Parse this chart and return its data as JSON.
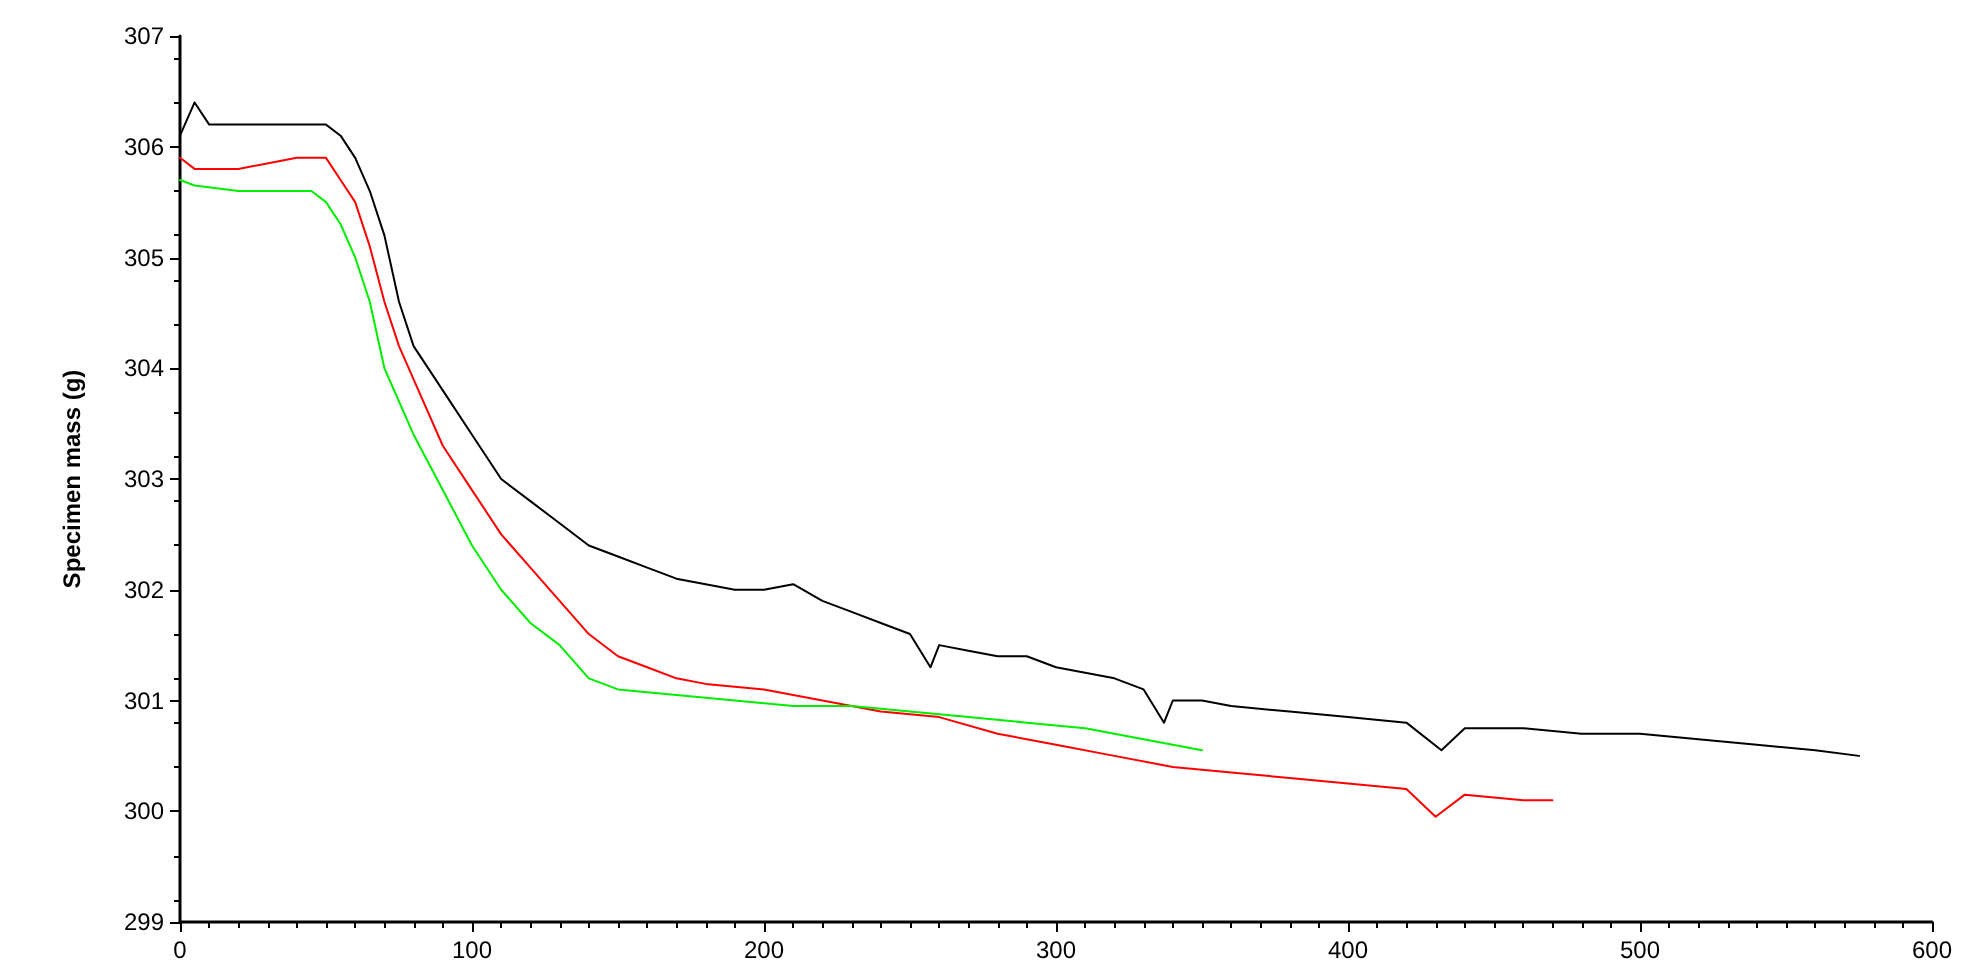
{
  "chart_data": {
    "type": "line",
    "ylabel": "Specimen mass (g)",
    "xlim": [
      0,
      600
    ],
    "xticks": [
      0,
      100,
      200,
      300,
      400,
      500,
      600
    ],
    "ylim": [
      299,
      307
    ],
    "yticks": [
      299,
      300,
      301,
      302,
      303,
      304,
      305,
      306,
      307
    ],
    "grid": false,
    "marker": "none",
    "line_style": "solid",
    "series": [
      {
        "color": "#000000",
        "x": [
          0,
          5,
          10,
          15,
          20,
          30,
          40,
          50,
          55,
          60,
          65,
          70,
          75,
          80,
          90,
          100,
          110,
          120,
          130,
          140,
          150,
          160,
          170,
          180,
          190,
          200,
          210,
          220,
          230,
          240,
          250,
          257,
          260,
          270,
          280,
          290,
          300,
          310,
          320,
          330,
          337,
          340,
          350,
          360,
          380,
          400,
          420,
          432,
          440,
          460,
          480,
          500,
          520,
          540,
          560,
          575
        ],
        "values": [
          306.1,
          306.4,
          306.2,
          306.2,
          306.2,
          306.2,
          306.2,
          306.2,
          306.1,
          305.9,
          305.6,
          305.2,
          304.6,
          304.2,
          303.8,
          303.4,
          303.0,
          302.8,
          302.6,
          302.4,
          302.3,
          302.2,
          302.1,
          302.05,
          302.0,
          302.0,
          302.05,
          301.9,
          301.8,
          301.7,
          301.6,
          301.3,
          301.5,
          301.45,
          301.4,
          301.4,
          301.3,
          301.25,
          301.2,
          301.1,
          300.8,
          301.0,
          301.0,
          300.95,
          300.9,
          300.85,
          300.8,
          300.55,
          300.75,
          300.75,
          300.7,
          300.7,
          300.65,
          300.6,
          300.55,
          300.5
        ]
      },
      {
        "color": "#ff0000",
        "x": [
          0,
          5,
          20,
          40,
          50,
          55,
          60,
          65,
          70,
          75,
          80,
          90,
          100,
          110,
          120,
          130,
          140,
          150,
          160,
          170,
          180,
          200,
          220,
          240,
          260,
          280,
          300,
          320,
          340,
          360,
          380,
          400,
          420,
          430,
          440,
          460,
          470
        ],
        "values": [
          305.9,
          305.8,
          305.8,
          305.9,
          305.9,
          305.7,
          305.5,
          305.1,
          304.6,
          304.2,
          303.9,
          303.3,
          302.9,
          302.5,
          302.2,
          301.9,
          301.6,
          301.4,
          301.3,
          301.2,
          301.15,
          301.1,
          301.0,
          300.9,
          300.85,
          300.7,
          300.6,
          300.5,
          300.4,
          300.35,
          300.3,
          300.25,
          300.2,
          299.95,
          300.15,
          300.1,
          300.1
        ]
      },
      {
        "color": "#00ee00",
        "x": [
          0,
          5,
          20,
          30,
          45,
          50,
          55,
          60,
          65,
          70,
          80,
          90,
          100,
          110,
          120,
          130,
          140,
          150,
          170,
          190,
          210,
          230,
          250,
          270,
          290,
          310,
          330,
          350
        ],
        "values": [
          305.7,
          305.65,
          305.6,
          305.6,
          305.6,
          305.5,
          305.3,
          305.0,
          304.6,
          304.0,
          303.4,
          302.9,
          302.4,
          302.0,
          301.7,
          301.5,
          301.2,
          301.1,
          301.05,
          301.0,
          300.95,
          300.95,
          300.9,
          300.85,
          300.8,
          300.75,
          300.65,
          300.55
        ]
      }
    ]
  }
}
